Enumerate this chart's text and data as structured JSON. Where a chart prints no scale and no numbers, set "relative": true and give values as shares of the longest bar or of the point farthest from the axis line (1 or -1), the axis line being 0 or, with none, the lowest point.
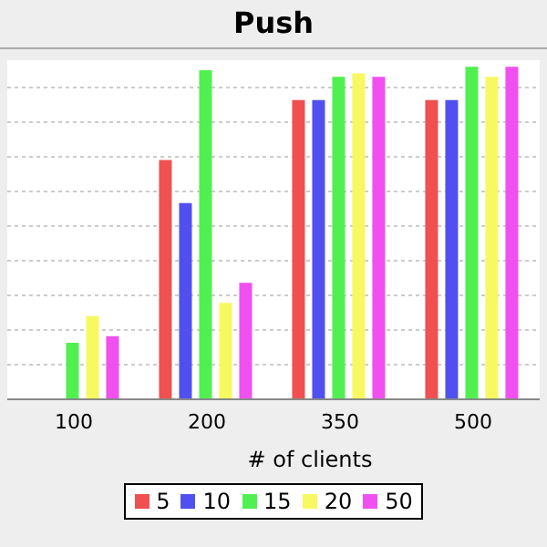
{
  "chart_data": {
    "type": "bar",
    "title": "Push",
    "xlabel": "# of clients",
    "relative": true,
    "grid": "y",
    "legend": "bottom",
    "categories": [
      "100",
      "200",
      "350",
      "500"
    ],
    "series": [
      {
        "name": "5",
        "color": "#f05050",
        "values": [
          null,
          0.72,
          0.9,
          0.9
        ]
      },
      {
        "name": "10",
        "color": "#5050f0",
        "values": [
          null,
          0.59,
          0.9,
          0.9
        ]
      },
      {
        "name": "15",
        "color": "#50f050",
        "values": [
          0.17,
          0.99,
          0.97,
          1.0
        ]
      },
      {
        "name": "20",
        "color": "#f8f860",
        "values": [
          0.25,
          0.29,
          0.98,
          0.97
        ]
      },
      {
        "name": "50",
        "color": "#f050f0",
        "values": [
          0.19,
          0.35,
          0.97,
          1.0
        ]
      }
    ]
  }
}
